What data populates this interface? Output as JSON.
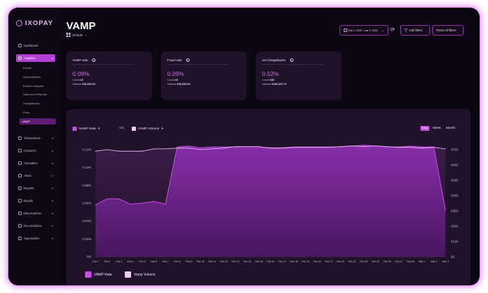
{
  "brand": {
    "name": "IXOPAY"
  },
  "sidebar": {
    "items": [
      {
        "label": "Dashboard",
        "icon": "home-icon",
        "caret": false
      },
      {
        "label": "Analytics",
        "icon": "clock-icon",
        "caret": true,
        "active": true
      },
      {
        "label": "Transactions",
        "icon": "transactions-icon",
        "caret": true
      },
      {
        "label": "Customer",
        "icon": "customer-icon",
        "caret": true
      },
      {
        "label": "Anomalies",
        "icon": "anomalies-icon",
        "caret": true
      },
      {
        "label": "Alerts",
        "icon": "alert-icon",
        "caret": true
      },
      {
        "label": "Reports",
        "icon": "reports-icon",
        "caret": true
      },
      {
        "label": "Boards",
        "icon": "boards-icon",
        "caret": true
      },
      {
        "label": "Data Explorer",
        "icon": "data-explorer-icon",
        "caret": true
      },
      {
        "label": "Reconciliation",
        "icon": "reconciliation-icon",
        "caret": true
      },
      {
        "label": "Superadmin",
        "icon": "superadmin-icon",
        "caret": true
      }
    ],
    "analytics_sub": [
      "Events",
      "Authorizations",
      "Decline Analysis",
      "Sales and Refunds",
      "Chargebacks",
      "Fees",
      "VAMP"
    ],
    "active_sub": "VAMP"
  },
  "header": {
    "title": "VAMP",
    "view_label": "Default",
    "date_range": "Feb 1, 2026 - mar 3, 2026",
    "add_filters": "Add filters",
    "reset_filters": "Reset all filters"
  },
  "kpis": [
    {
      "title": "VAMP ratio",
      "value": "0.09%",
      "count_label": "Count",
      "count": "62",
      "volume_label": "Volume",
      "volume": "€20,050.02"
    },
    {
      "title": "Fraud rate",
      "value": "0.09%",
      "count_label": "Count",
      "count": "62",
      "volume_label": "Volume",
      "volume": "€20,050.02"
    },
    {
      "title": "1st Chargebacks",
      "value": "0.52%",
      "count_label": "Count",
      "count": "342",
      "volume_label": "Volume",
      "volume": "€163,337.74"
    }
  ],
  "chart_controls": {
    "series_a": "VAMP Rate",
    "vs": "VS.",
    "series_b": "VAMP Volume",
    "granularity": [
      "Day",
      "Week",
      "Month"
    ],
    "granularity_selected": "Day"
  },
  "legend": {
    "a": "VAMP Rate",
    "b": "Vamp Volume"
  },
  "colors": {
    "rate": "#c84ce6",
    "volume": "#f1c9f8",
    "accent": "#b33fd6"
  },
  "chart_data": {
    "type": "area",
    "categories": [
      "Feb 1",
      "Feb 2",
      "Feb 3",
      "Feb 4",
      "Feb 5",
      "Feb 6",
      "Feb 7",
      "Feb 8",
      "Feb 9",
      "Feb 10",
      "Feb 11",
      "Feb 12",
      "Feb 13",
      "Feb 14",
      "Feb 15",
      "Feb 16",
      "Feb 17",
      "Feb 18",
      "Feb 19",
      "Feb 20",
      "Feb 21",
      "Feb 22",
      "Feb 23",
      "Feb 24",
      "Feb 25",
      "Feb 26",
      "Feb 27",
      "Feb 28",
      "Mar 1",
      "Mar 2",
      "Mar 3"
    ],
    "y_left": {
      "ticks": [
        "0%",
        "0.02%",
        "0.04%",
        "0.06%",
        "0.08%",
        "0.10%",
        "0.12%"
      ],
      "min": 0,
      "max": 0.12
    },
    "y_right": {
      "ticks": [
        "€0",
        "€100",
        "€200",
        "€300",
        "€400",
        "€500",
        "€600",
        "€700"
      ],
      "min": 0,
      "max": 700
    },
    "series": [
      {
        "name": "VAMP Rate",
        "axis": "left",
        "values": [
          0.058,
          0.065,
          0.065,
          0.059,
          0.06,
          0.062,
          0.059,
          0.123,
          0.124,
          0.122,
          0.123,
          0.123,
          0.123,
          0.123,
          0.123,
          0.122,
          0.122,
          0.123,
          0.123,
          0.123,
          0.123,
          0.123,
          0.124,
          0.125,
          0.124,
          0.123,
          0.123,
          0.124,
          0.123,
          0.123,
          0.052
        ]
      },
      {
        "name": "Vamp Volume",
        "axis": "right",
        "values": [
          690,
          700,
          690,
          690,
          690,
          705,
          705,
          710,
          710,
          700,
          705,
          710,
          720,
          720,
          720,
          710,
          710,
          715,
          715,
          715,
          715,
          720,
          725,
          720,
          725,
          720,
          715,
          715,
          710,
          715,
          705
        ]
      }
    ]
  }
}
